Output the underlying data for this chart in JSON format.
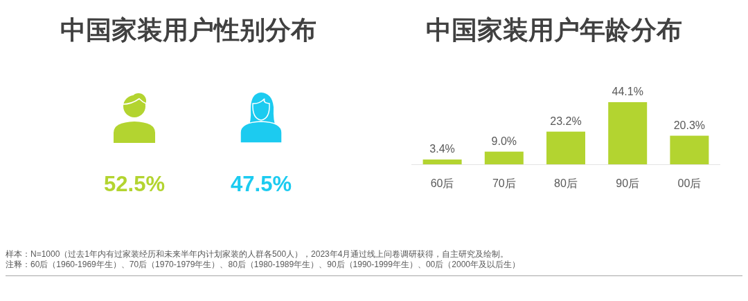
{
  "chart_data": [
    {
      "type": "other",
      "title": "中国家装用户性别分布",
      "categories": [
        null,
        null
      ],
      "values": [
        52.5,
        47.5
      ],
      "value_labels": [
        "52.5%",
        "47.5%"
      ],
      "colors": [
        "#b3d430",
        "#1ccbf0"
      ]
    },
    {
      "type": "bar",
      "title": "中国家装用户年龄分布",
      "categories": [
        "60后",
        "70后",
        "80后",
        "90后",
        "00后"
      ],
      "values": [
        3.4,
        9.0,
        23.2,
        44.1,
        20.3
      ],
      "value_labels": [
        "3.4%",
        "9.0%",
        "23.2%",
        "44.1%",
        "20.3%"
      ],
      "color": "#b3d430",
      "annotations": [
        "样本：N=1000（过去1年内有过家装经历和未来半年内计划家装的人群各500人），2023年4月通过线上问卷调研获得，自主研究及绘制。",
        "注释：60后（1960-1969年生）、70后（1970-1979年生）、80后（1980-1989年生）、90后（1990-1999年生）、00后（2000年及以后生）"
      ]
    }
  ]
}
